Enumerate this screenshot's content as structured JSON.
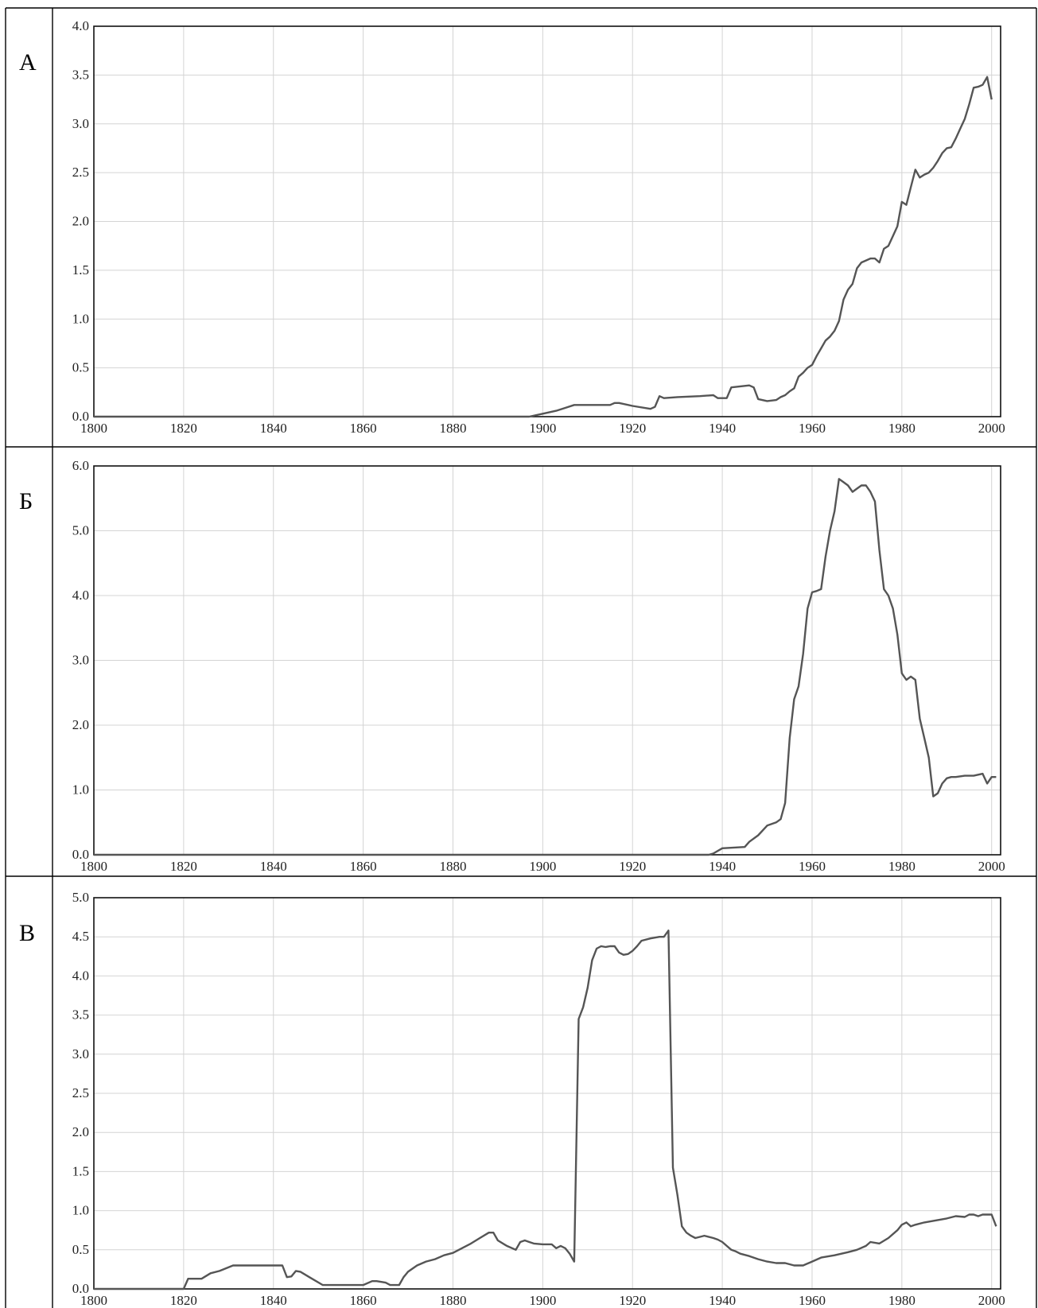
{
  "colors": {
    "line": "#555555",
    "grid": "#d4d4d4",
    "border": "#111111"
  },
  "chart_data": [
    {
      "type": "line",
      "label": "А",
      "xlim": [
        1800,
        2002
      ],
      "ylim": [
        0,
        4
      ],
      "xticks": [
        "1800",
        "1820",
        "1840",
        "1860",
        "1880",
        "1900",
        "1920",
        "1940",
        "1960",
        "1980",
        "2000"
      ],
      "yticks": [
        "0.0",
        "0.5",
        "1.0",
        "1.5",
        "2.0",
        "2.5",
        "3.0",
        "3.5",
        "4.0"
      ],
      "grid": true,
      "series": [
        {
          "x": [
            1800,
            1897,
            1900,
            1903,
            1905,
            1907,
            1910,
            1915,
            1916,
            1917,
            1920,
            1924,
            1925,
            1926,
            1927,
            1930,
            1935,
            1938,
            1939,
            1941,
            1942,
            1944,
            1946,
            1947,
            1948,
            1950,
            1952,
            1953,
            1954,
            1955,
            1956,
            1957,
            1958,
            1959,
            1960,
            1961,
            1962,
            1963,
            1964,
            1965,
            1966,
            1967,
            1968,
            1969,
            1970,
            1971,
            1972,
            1973,
            1974,
            1975,
            1976,
            1977,
            1978,
            1979,
            1980,
            1981,
            1982,
            1983,
            1984,
            1985,
            1986,
            1987,
            1988,
            1989,
            1990,
            1991,
            1992,
            1993,
            1994,
            1995,
            1996,
            1997,
            1998,
            1999,
            2000
          ],
          "y": [
            0,
            0,
            0.03,
            0.06,
            0.09,
            0.12,
            0.12,
            0.12,
            0.14,
            0.14,
            0.11,
            0.08,
            0.1,
            0.21,
            0.19,
            0.2,
            0.21,
            0.22,
            0.19,
            0.19,
            0.3,
            0.31,
            0.32,
            0.3,
            0.18,
            0.16,
            0.17,
            0.2,
            0.22,
            0.26,
            0.29,
            0.41,
            0.45,
            0.5,
            0.53,
            0.62,
            0.7,
            0.78,
            0.82,
            0.88,
            0.98,
            1.2,
            1.3,
            1.36,
            1.52,
            1.58,
            1.6,
            1.62,
            1.62,
            1.58,
            1.72,
            1.75,
            1.85,
            1.95,
            2.2,
            2.17,
            2.35,
            2.53,
            2.45,
            2.48,
            2.5,
            2.55,
            2.62,
            2.7,
            2.75,
            2.76,
            2.85,
            2.95,
            3.05,
            3.2,
            3.37,
            3.38,
            3.4,
            3.48,
            3.25
          ]
        }
      ]
    },
    {
      "type": "line",
      "label": "Б",
      "xlim": [
        1800,
        2002
      ],
      "ylim": [
        0,
        6
      ],
      "xticks": [
        "1800",
        "1820",
        "1840",
        "1860",
        "1880",
        "1900",
        "1920",
        "1940",
        "1960",
        "1980",
        "2000"
      ],
      "yticks": [
        "0.0",
        "1.0",
        "2.0",
        "3.0",
        "4.0",
        "5.0",
        "6.0"
      ],
      "grid": true,
      "series": [
        {
          "x": [
            1800,
            1937,
            1938,
            1940,
            1945,
            1946,
            1948,
            1950,
            1952,
            1953,
            1954,
            1955,
            1956,
            1957,
            1958,
            1959,
            1960,
            1961,
            1962,
            1963,
            1964,
            1965,
            1966,
            1967,
            1968,
            1969,
            1970,
            1971,
            1972,
            1973,
            1974,
            1975,
            1976,
            1977,
            1978,
            1979,
            1980,
            1981,
            1982,
            1983,
            1984,
            1985,
            1986,
            1987,
            1988,
            1989,
            1990,
            1991,
            1992,
            1994,
            1996,
            1998,
            1999,
            2000,
            2001
          ],
          "y": [
            0,
            0,
            0.02,
            0.1,
            0.12,
            0.2,
            0.3,
            0.45,
            0.5,
            0.55,
            0.8,
            1.8,
            2.4,
            2.6,
            3.1,
            3.8,
            4.05,
            4.07,
            4.1,
            4.6,
            5.0,
            5.3,
            5.8,
            5.75,
            5.7,
            5.6,
            5.65,
            5.7,
            5.7,
            5.6,
            5.45,
            4.7,
            4.1,
            4.0,
            3.8,
            3.4,
            2.8,
            2.7,
            2.75,
            2.7,
            2.1,
            1.8,
            1.5,
            0.9,
            0.95,
            1.1,
            1.18,
            1.2,
            1.2,
            1.22,
            1.22,
            1.25,
            1.1,
            1.2,
            1.2
          ]
        }
      ]
    },
    {
      "type": "line",
      "label": "В",
      "xlim": [
        1800,
        2002
      ],
      "ylim": [
        0,
        5
      ],
      "xticks": [
        "1800",
        "1820",
        "1840",
        "1860",
        "1880",
        "1900",
        "1920",
        "1940",
        "1960",
        "1980",
        "2000"
      ],
      "yticks": [
        "0.0",
        "0.5",
        "1.0",
        "1.5",
        "2.0",
        "2.5",
        "3.0",
        "3.5",
        "4.0",
        "4.5",
        "5.0"
      ],
      "grid": true,
      "series": [
        {
          "x": [
            1800,
            1820,
            1821,
            1824,
            1826,
            1828,
            1831,
            1834,
            1838,
            1842,
            1843,
            1844,
            1845,
            1846,
            1848,
            1851,
            1853,
            1856,
            1860,
            1862,
            1863,
            1865,
            1866,
            1868,
            1869,
            1870,
            1872,
            1874,
            1876,
            1878,
            1880,
            1882,
            1884,
            1886,
            1888,
            1889,
            1890,
            1892,
            1894,
            1895,
            1896,
            1897,
            1898,
            1900,
            1902,
            1903,
            1904,
            1905,
            1906,
            1907,
            1908,
            1909,
            1910,
            1911,
            1912,
            1913,
            1914,
            1915,
            1916,
            1917,
            1918,
            1919,
            1920,
            1921,
            1922,
            1924,
            1926,
            1927,
            1928,
            1929,
            1930,
            1931,
            1932,
            1933,
            1934,
            1936,
            1938,
            1939,
            1940,
            1941,
            1942,
            1943,
            1944,
            1946,
            1948,
            1950,
            1952,
            1954,
            1956,
            1958,
            1960,
            1962,
            1965,
            1968,
            1970,
            1972,
            1973,
            1975,
            1977,
            1979,
            1980,
            1981,
            1982,
            1983,
            1985,
            1987,
            1990,
            1992,
            1994,
            1995,
            1996,
            1997,
            1998,
            2000,
            2001
          ],
          "y": [
            0,
            0,
            0.13,
            0.13,
            0.2,
            0.23,
            0.3,
            0.3,
            0.3,
            0.3,
            0.15,
            0.16,
            0.23,
            0.22,
            0.15,
            0.05,
            0.05,
            0.05,
            0.05,
            0.1,
            0.1,
            0.08,
            0.05,
            0.05,
            0.15,
            0.22,
            0.3,
            0.35,
            0.38,
            0.43,
            0.46,
            0.52,
            0.58,
            0.65,
            0.72,
            0.72,
            0.62,
            0.55,
            0.5,
            0.6,
            0.62,
            0.6,
            0.58,
            0.57,
            0.57,
            0.52,
            0.55,
            0.52,
            0.45,
            0.35,
            3.45,
            3.6,
            3.85,
            4.2,
            4.35,
            4.38,
            4.37,
            4.38,
            4.38,
            4.3,
            4.27,
            4.28,
            4.32,
            4.38,
            4.45,
            4.48,
            4.5,
            4.5,
            4.58,
            1.55,
            1.2,
            0.8,
            0.72,
            0.68,
            0.65,
            0.68,
            0.65,
            0.63,
            0.6,
            0.55,
            0.5,
            0.48,
            0.45,
            0.42,
            0.38,
            0.35,
            0.33,
            0.33,
            0.3,
            0.3,
            0.35,
            0.4,
            0.43,
            0.47,
            0.5,
            0.55,
            0.6,
            0.58,
            0.65,
            0.75,
            0.82,
            0.85,
            0.8,
            0.82,
            0.85,
            0.87,
            0.9,
            0.93,
            0.92,
            0.95,
            0.95,
            0.93,
            0.95,
            0.95,
            0.8
          ]
        }
      ]
    }
  ]
}
